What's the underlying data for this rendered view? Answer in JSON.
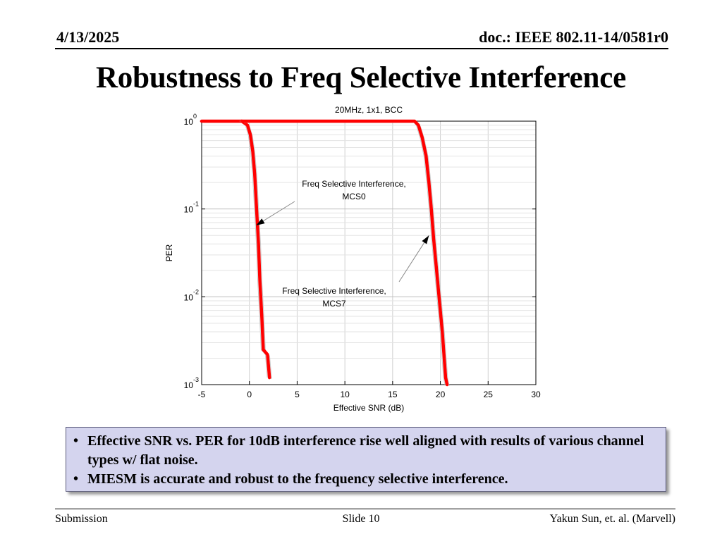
{
  "header": {
    "date": "4/13/2025",
    "doc": "doc.: IEEE 802.11-14/0581r0"
  },
  "title": "Robustness to Freq Selective Interference",
  "chart_data": {
    "type": "line",
    "title": "20MHz, 1x1, BCC",
    "xlabel": "Effective SNR (dB)",
    "ylabel": "PER",
    "xlim": [
      -5,
      30
    ],
    "ylim": [
      0.001,
      1
    ],
    "yscale": "log",
    "grid": true,
    "xticks": [
      "-5",
      "0",
      "5",
      "10",
      "15",
      "20",
      "25",
      "30"
    ],
    "yticks": [
      {
        "base": "10",
        "exp": "0"
      },
      {
        "base": "10",
        "exp": "-1"
      },
      {
        "base": "10",
        "exp": "-2"
      },
      {
        "base": "10",
        "exp": "-3"
      }
    ],
    "series": [
      {
        "color": "#ff0000",
        "x": [
          -5,
          -0.8,
          -0.2,
          0.1,
          0.35,
          0.55,
          0.75,
          0.95,
          1.1,
          1.3,
          1.45,
          1.9,
          2.1
        ],
        "y": [
          1,
          1,
          0.9,
          0.7,
          0.45,
          0.25,
          0.1,
          0.04,
          0.015,
          0.006,
          0.0025,
          0.0022,
          0.0012
        ]
      },
      {
        "color": "#ff0000",
        "x": [
          -0.8,
          17.3,
          17.7,
          18.1,
          18.5,
          18.8,
          19.05,
          19.3,
          19.6,
          19.9,
          20.2,
          20.4,
          20.55,
          20.7
        ],
        "y": [
          1,
          1,
          0.9,
          0.65,
          0.4,
          0.2,
          0.1,
          0.045,
          0.02,
          0.009,
          0.004,
          0.002,
          0.0012,
          0.001
        ]
      }
    ],
    "annotations": [
      {
        "text_lines": [
          "Freq Selective Interference,",
          "MCS0"
        ],
        "arrow_to": [
          0.7,
          0.065
        ]
      },
      {
        "text_lines": [
          "Freq Selective Interference,",
          "MCS7"
        ],
        "arrow_to": [
          18.8,
          0.05
        ]
      }
    ]
  },
  "callout": {
    "bullets": [
      "Effective SNR vs. PER for 10dB interference rise well aligned with results of various channel types w/ flat noise.",
      "MIESM is accurate and robust to the frequency selective interference."
    ],
    "bullet_char": "•"
  },
  "footer": {
    "left": "Submission",
    "center": "Slide 10",
    "right": "Yakun Sun, et. al. (Marvell)"
  }
}
